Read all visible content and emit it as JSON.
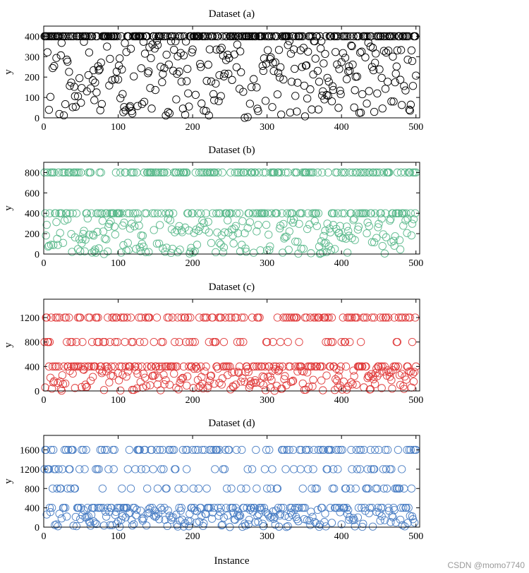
{
  "figure": {
    "xlabel": "Instance",
    "watermark": "CSDN @momo7740"
  },
  "chart_data": [
    {
      "type": "scatter",
      "title": "Dataset (a)",
      "ylabel": "y",
      "xlabel": "",
      "xlim": [
        0,
        505
      ],
      "ylim": [
        0,
        450
      ],
      "xticks": [
        0,
        100,
        200,
        300,
        400,
        500
      ],
      "yticks": [
        0,
        100,
        200,
        300,
        400
      ],
      "color": "#000000",
      "levels": [
        {
          "value": 400,
          "fraction": 0.45,
          "jitter": 0
        }
      ],
      "low_range": [
        0,
        380
      ],
      "n_points": 500,
      "seed": 11
    },
    {
      "type": "scatter",
      "title": "Dataset (b)",
      "ylabel": "y",
      "xlabel": "",
      "xlim": [
        0,
        505
      ],
      "ylim": [
        0,
        900
      ],
      "xticks": [
        0,
        100,
        200,
        300,
        400,
        500
      ],
      "yticks": [
        0,
        200,
        400,
        600,
        800
      ],
      "color": "#5bb98c",
      "levels": [
        {
          "value": 800,
          "fraction": 0.3,
          "jitter": 0
        },
        {
          "value": 400,
          "fraction": 0.25,
          "jitter": 0
        }
      ],
      "low_range": [
        0,
        350
      ],
      "n_points": 500,
      "seed": 23
    },
    {
      "type": "scatter",
      "title": "Dataset (c)",
      "ylabel": "y",
      "xlabel": "",
      "xlim": [
        0,
        505
      ],
      "ylim": [
        0,
        1500
      ],
      "xticks": [
        0,
        100,
        200,
        300,
        400,
        500
      ],
      "yticks": [
        0,
        400,
        800,
        1200
      ],
      "color": "#e03c3c",
      "levels": [
        {
          "value": 1200,
          "fraction": 0.23,
          "jitter": 0
        },
        {
          "value": 800,
          "fraction": 0.12,
          "jitter": 0
        },
        {
          "value": 400,
          "fraction": 0.28,
          "jitter": 0
        }
      ],
      "low_range": [
        0,
        370
      ],
      "n_points": 500,
      "seed": 37
    },
    {
      "type": "scatter",
      "title": "Dataset (d)",
      "ylabel": "y",
      "xlabel": "Instance",
      "xlim": [
        0,
        505
      ],
      "ylim": [
        0,
        1900
      ],
      "xticks": [
        0,
        100,
        200,
        300,
        400,
        500
      ],
      "yticks": [
        0,
        400,
        800,
        1200,
        1600
      ],
      "color": "#4a7ec4",
      "levels": [
        {
          "value": 1600,
          "fraction": 0.18,
          "jitter": 0
        },
        {
          "value": 1200,
          "fraction": 0.08,
          "jitter": 0
        },
        {
          "value": 800,
          "fraction": 0.12,
          "jitter": 0
        },
        {
          "value": 400,
          "fraction": 0.22,
          "jitter": 0
        }
      ],
      "low_range": [
        0,
        370
      ],
      "n_points": 500,
      "seed": 53
    }
  ]
}
